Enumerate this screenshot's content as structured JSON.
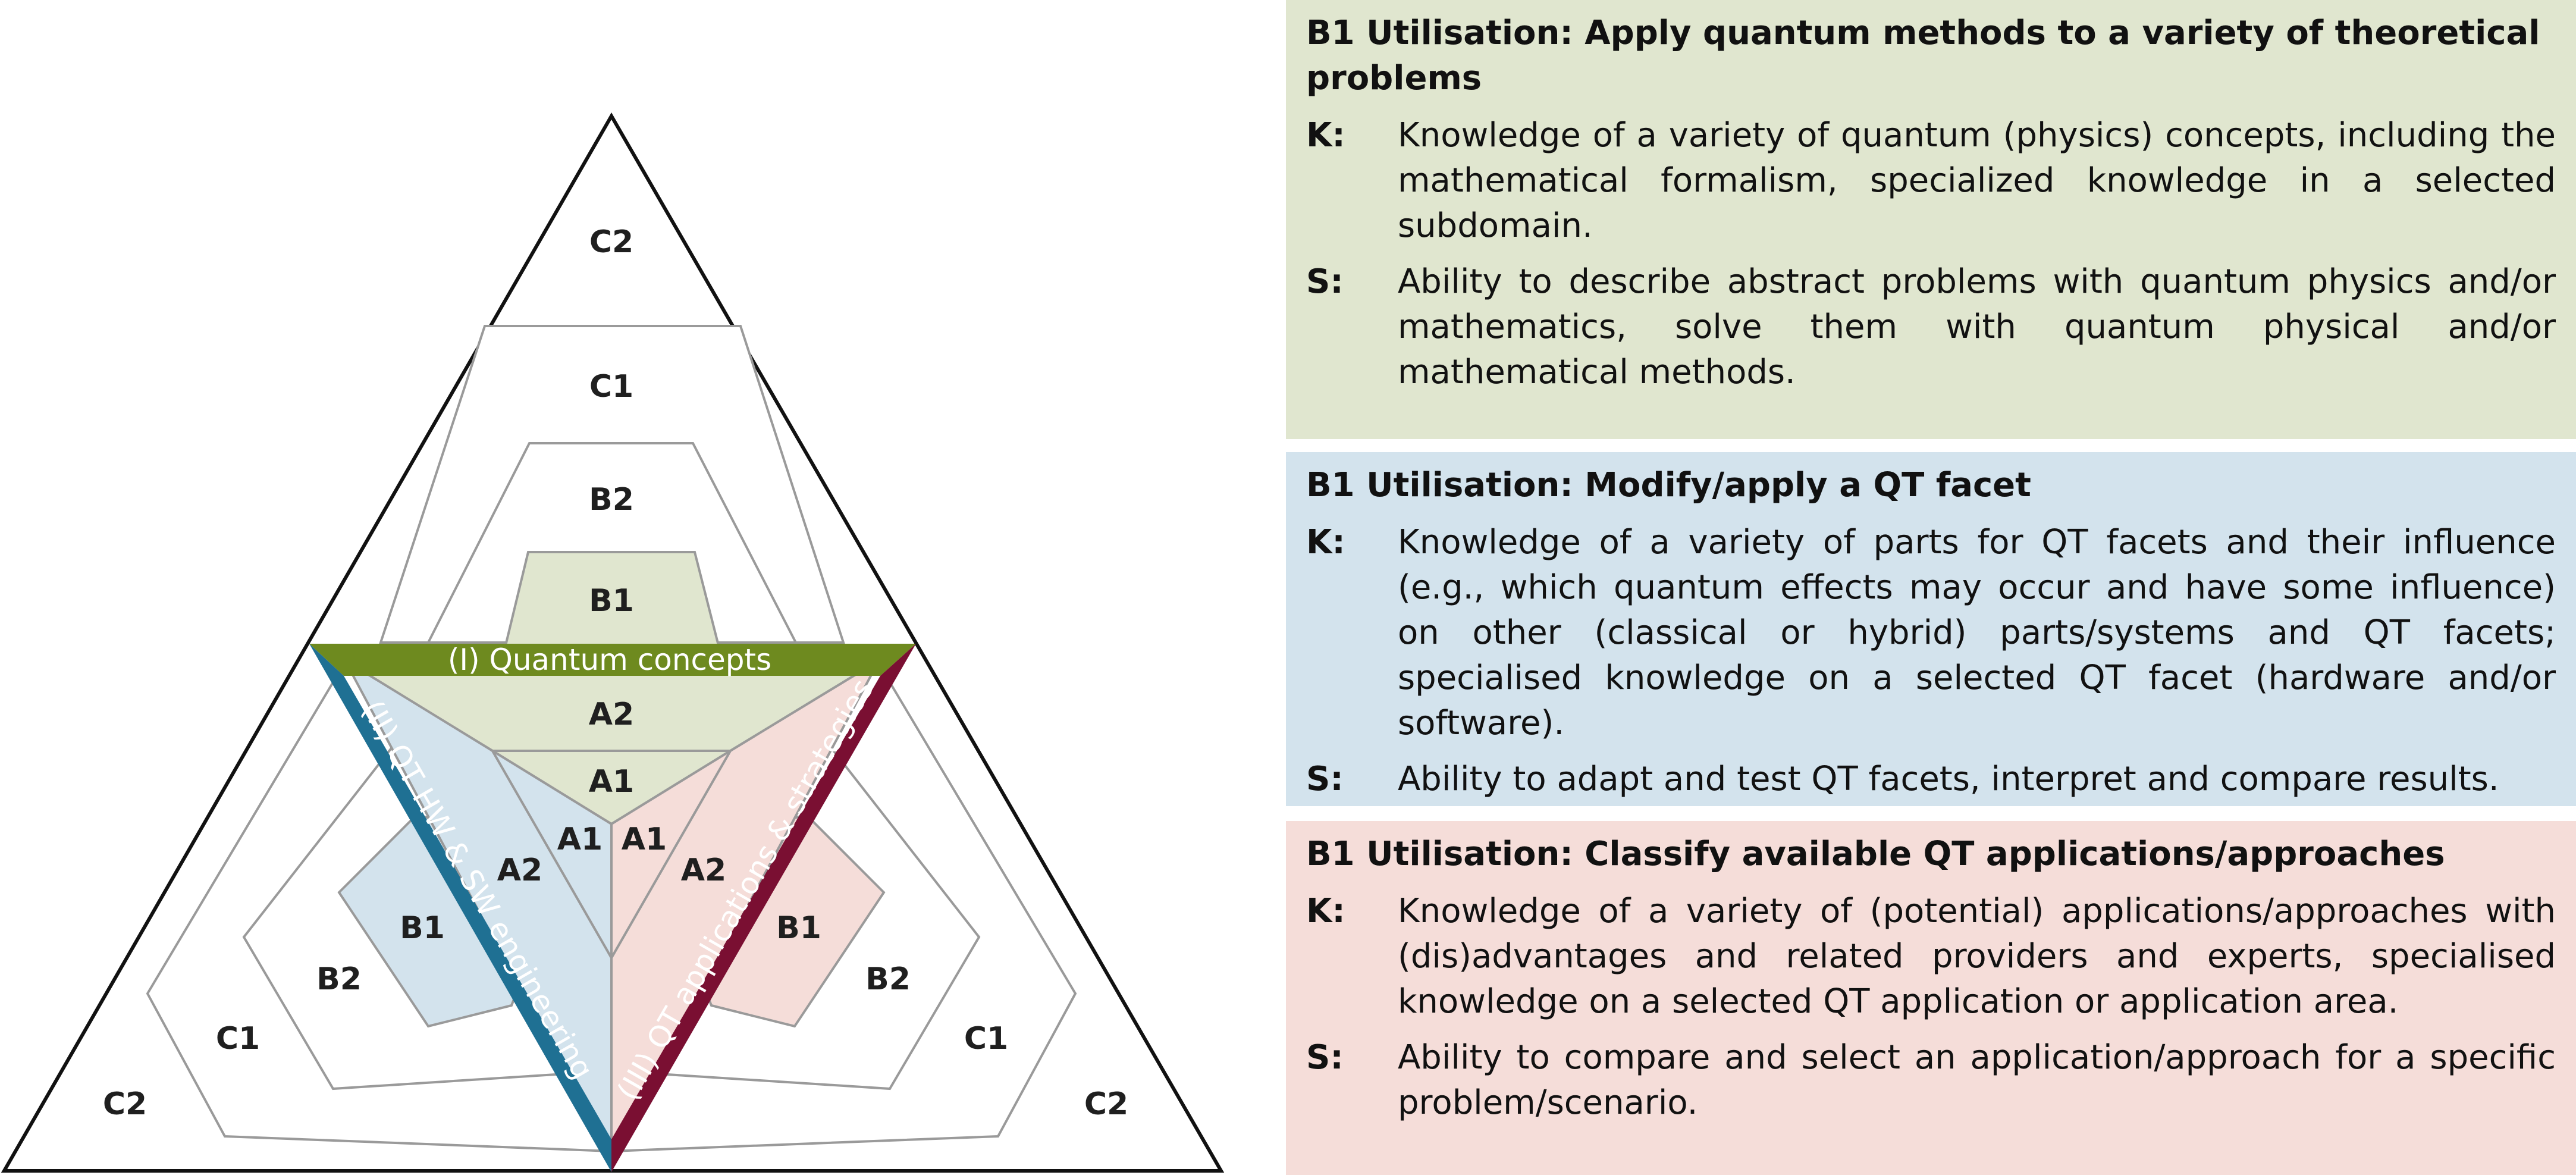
{
  "colors": {
    "concepts": "#6e8a1f",
    "concepts_fill": "#e0e6cf",
    "engineering": "#1f7093",
    "engineering_fill": "#d3e3ed",
    "applications": "#7a0f32",
    "applications_fill": "#f5ddd9",
    "outline": "#9a9a9a"
  },
  "diagram": {
    "top_levels": [
      "C2",
      "C1",
      "B2",
      "B1"
    ],
    "band_concepts": "(I) Quantum concepts",
    "band_engineering": "(II) QT HW & SW engineering",
    "band_applications": "(III) QT applications & strategies",
    "inner": {
      "a2_top": "A2",
      "a1_top": "A1",
      "a1_left": "A1",
      "a2_left": "A2",
      "a1_right": "A1",
      "a2_right": "A2"
    },
    "left_levels": [
      "B1",
      "B2",
      "C1",
      "C2"
    ],
    "right_levels": [
      "B1",
      "B2",
      "C1",
      "C2"
    ]
  },
  "panels": [
    {
      "title": "B1 Utilisation: Apply quantum methods to a variety of theoretical problems",
      "k_label": "K:",
      "k_text": "Knowledge of a variety of quantum (physics) concepts, including the mathematical formalism, specialized knowledge in a selected subdomain.",
      "s_label": "S:",
      "s_text": "Ability to describe abstract problems with quantum physics and/or mathematics, solve them with quantum physical and/or mathematical methods."
    },
    {
      "title": "B1 Utilisation: Modify/apply a QT facet",
      "k_label": "K:",
      "k_text": "Knowledge of a variety of parts for QT facets and their influence (e.g., which quantum effects may occur and have some influence) on other (classical or hybrid) parts/systems and QT facets; specialised knowledge on a selected QT facet (hardware and/or software).",
      "s_label": "S:",
      "s_text": "Ability to adapt and test QT facets, interpret and compare results."
    },
    {
      "title": "B1 Utilisation: Classify available QT applications/approaches",
      "k_label": "K:",
      "k_text": "Knowledge of a variety of (potential) applications/approaches with (dis)advantages and related providers and experts, specialised knowledge on a selected QT application or application area.",
      "s_label": "S:",
      "s_text": "Ability to compare and select an application/approach for a specific problem/scenario."
    }
  ]
}
